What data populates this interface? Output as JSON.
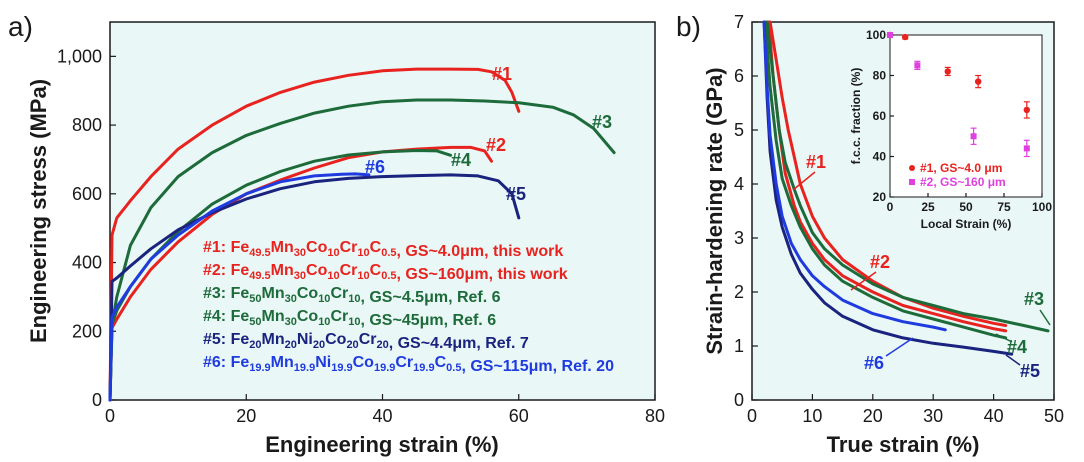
{
  "chart_data": [
    {
      "type": "line",
      "panel_label": "a)",
      "xlabel": "Engineering strain (%)",
      "ylabel": "Engineering stress (MPa)",
      "xlim": [
        0,
        80
      ],
      "ylim": [
        0,
        1100
      ],
      "xticks": [
        "0",
        "20",
        "40",
        "60",
        "80"
      ],
      "yticks": [
        "0",
        "200",
        "400",
        "600",
        "800",
        "1,000"
      ],
      "xtick_values": [
        0,
        20,
        40,
        60,
        80
      ],
      "ytick_values": [
        0,
        200,
        400,
        600,
        800,
        1000
      ],
      "grid": false,
      "background": "#e9f7f6",
      "series": [
        {
          "tag": "#1",
          "color": "#e8231f",
          "x": [
            0,
            0.3,
            1,
            3,
            6,
            10,
            15,
            20,
            25,
            30,
            35,
            40,
            45,
            50,
            54,
            56,
            58,
            59,
            60
          ],
          "y": [
            0,
            480,
            530,
            580,
            650,
            730,
            800,
            855,
            895,
            925,
            945,
            958,
            963,
            963,
            962,
            955,
            930,
            895,
            840
          ]
        },
        {
          "tag": "#2",
          "color": "#e8231f",
          "x": [
            0,
            0.3,
            1,
            3,
            6,
            10,
            15,
            20,
            25,
            30,
            35,
            40,
            45,
            50,
            53,
            55,
            56
          ],
          "y": [
            0,
            210,
            235,
            300,
            380,
            460,
            540,
            600,
            640,
            675,
            705,
            722,
            730,
            735,
            735,
            725,
            695
          ]
        },
        {
          "tag": "#3",
          "color": "#1d6b3a",
          "x": [
            0,
            0.3,
            1,
            3,
            6,
            10,
            15,
            20,
            25,
            30,
            35,
            40,
            45,
            50,
            55,
            60,
            65,
            68,
            71,
            74
          ],
          "y": [
            0,
            220,
            300,
            450,
            560,
            650,
            720,
            770,
            805,
            835,
            855,
            868,
            873,
            873,
            870,
            865,
            852,
            830,
            790,
            720
          ]
        },
        {
          "tag": "#4",
          "color": "#1d6b3a",
          "x": [
            0,
            0.3,
            1,
            3,
            6,
            10,
            15,
            20,
            25,
            30,
            35,
            40,
            45,
            48,
            50
          ],
          "y": [
            0,
            220,
            260,
            330,
            410,
            490,
            570,
            625,
            665,
            695,
            713,
            722,
            726,
            725,
            712
          ]
        },
        {
          "tag": "#5",
          "color": "#1a237e",
          "x": [
            0,
            0.3,
            1,
            3,
            6,
            10,
            15,
            20,
            25,
            30,
            35,
            40,
            45,
            50,
            54,
            57,
            59,
            60
          ],
          "y": [
            0,
            345,
            355,
            390,
            440,
            495,
            545,
            585,
            615,
            635,
            645,
            650,
            653,
            655,
            652,
            638,
            600,
            530
          ]
        },
        {
          "tag": "#6",
          "color": "#1f3be0",
          "x": [
            0,
            0.3,
            1,
            3,
            6,
            10,
            15,
            20,
            25,
            30,
            34,
            36,
            38
          ],
          "y": [
            0,
            240,
            270,
            330,
            410,
            480,
            550,
            600,
            635,
            652,
            657,
            658,
            655
          ]
        }
      ],
      "legend": [
        {
          "color": "#e8231f",
          "lead": "#1: Fe",
          "parts": [
            [
              "49.5",
              "Mn"
            ],
            [
              "30",
              "Co"
            ],
            [
              "10",
              "Cr"
            ],
            [
              "10",
              "C"
            ],
            [
              "0.5",
              ""
            ]
          ],
          "tail": ", GS~4.0μm, this work"
        },
        {
          "color": "#e8231f",
          "lead": "#2: Fe",
          "parts": [
            [
              "49.5",
              "Mn"
            ],
            [
              "30",
              "Co"
            ],
            [
              "10",
              "Cr"
            ],
            [
              "10",
              "C"
            ],
            [
              "0.5",
              ""
            ]
          ],
          "tail": ", GS~160μm, this work"
        },
        {
          "color": "#1d6b3a",
          "lead": "#3: Fe",
          "parts": [
            [
              "50",
              "Mn"
            ],
            [
              "30",
              "Co"
            ],
            [
              "10",
              "Cr"
            ],
            [
              "10",
              ""
            ]
          ],
          "tail": ", GS~4.5μm, Ref. 6"
        },
        {
          "color": "#1d6b3a",
          "lead": "#4: Fe",
          "parts": [
            [
              "50",
              "Mn"
            ],
            [
              "30",
              "Co"
            ],
            [
              "10",
              "Cr"
            ],
            [
              "10",
              ""
            ]
          ],
          "tail": ", GS~45μm, Ref. 6"
        },
        {
          "color": "#1a237e",
          "lead": "#5: Fe",
          "parts": [
            [
              "20",
              "Mn"
            ],
            [
              "20",
              "Ni"
            ],
            [
              "20",
              "Co"
            ],
            [
              "20",
              "Cr"
            ],
            [
              "20",
              ""
            ]
          ],
          "tail": ", GS~4.4μm, Ref. 7"
        },
        {
          "color": "#1f3be0",
          "lead": "#6: Fe",
          "parts": [
            [
              "19.9",
              "Mn"
            ],
            [
              "19.9",
              "Ni"
            ],
            [
              "19.9",
              "Co"
            ],
            [
              "19.9",
              "Cr"
            ],
            [
              "19.9",
              "C"
            ],
            [
              "0.5",
              ""
            ]
          ],
          "tail": ", GS~115μm, Ref. 20"
        }
      ]
    },
    {
      "type": "line",
      "panel_label": "b)",
      "xlabel": "True strain (%)",
      "ylabel": "Strain-hardening rate (GPa)",
      "xlim": [
        0,
        50
      ],
      "ylim": [
        0,
        7
      ],
      "xticks": [
        "0",
        "10",
        "20",
        "30",
        "40",
        "50"
      ],
      "yticks": [
        "0",
        "1",
        "2",
        "3",
        "4",
        "5",
        "6",
        "7"
      ],
      "xtick_values": [
        0,
        10,
        20,
        30,
        40,
        50
      ],
      "ytick_values": [
        0,
        1,
        2,
        3,
        4,
        5,
        6,
        7
      ],
      "grid": false,
      "background": "#e9f7f6",
      "series": [
        {
          "tag": "#1",
          "color": "#e8231f",
          "x": [
            3,
            4,
            5,
            6,
            7,
            8,
            10,
            12,
            15,
            20,
            25,
            30,
            35,
            40,
            42
          ],
          "y": [
            7,
            6.3,
            5.6,
            5.0,
            4.5,
            4.0,
            3.4,
            3.0,
            2.6,
            2.2,
            1.9,
            1.7,
            1.55,
            1.42,
            1.38
          ]
        },
        {
          "tag": "#2",
          "color": "#e8231f",
          "x": [
            2.8,
            3.5,
            4.5,
            5.5,
            7,
            8,
            10,
            12,
            15,
            20,
            25,
            30,
            35,
            40,
            42
          ],
          "y": [
            7,
            6.0,
            5.0,
            4.2,
            3.6,
            3.3,
            2.9,
            2.6,
            2.3,
            2.0,
            1.75,
            1.6,
            1.45,
            1.32,
            1.28
          ]
        },
        {
          "tag": "#3",
          "color": "#1d6b3a",
          "x": [
            2.5,
            3.5,
            4.5,
            5.5,
            7,
            8,
            10,
            12,
            15,
            20,
            25,
            30,
            35,
            40,
            45,
            49
          ],
          "y": [
            7,
            6.0,
            5.0,
            4.4,
            3.9,
            3.6,
            3.1,
            2.8,
            2.5,
            2.15,
            1.9,
            1.75,
            1.6,
            1.5,
            1.38,
            1.28
          ]
        },
        {
          "tag": "#4",
          "color": "#1d6b3a",
          "x": [
            2.2,
            3,
            4,
            5,
            6.5,
            8,
            10,
            12,
            15,
            20,
            25,
            30,
            35,
            40,
            42
          ],
          "y": [
            7,
            5.8,
            4.8,
            4.1,
            3.6,
            3.2,
            2.8,
            2.5,
            2.2,
            1.9,
            1.65,
            1.5,
            1.35,
            1.2,
            1.15
          ]
        },
        {
          "tag": "#5",
          "color": "#1a237e",
          "x": [
            2,
            2.5,
            3,
            4,
            5,
            6.5,
            8,
            10,
            12,
            15,
            20,
            25,
            30,
            35,
            40,
            43
          ],
          "y": [
            7,
            5.6,
            4.6,
            3.7,
            3.2,
            2.7,
            2.35,
            2.05,
            1.8,
            1.55,
            1.3,
            1.15,
            1.05,
            0.98,
            0.9,
            0.85
          ]
        },
        {
          "tag": "#6",
          "color": "#1f3be0",
          "x": [
            2,
            2.5,
            3,
            4,
            5,
            6.5,
            8,
            10,
            12,
            15,
            20,
            25,
            30,
            32
          ],
          "y": [
            7,
            5.8,
            4.9,
            4.0,
            3.4,
            2.9,
            2.6,
            2.3,
            2.1,
            1.85,
            1.6,
            1.45,
            1.35,
            1.3
          ]
        }
      ],
      "inset": {
        "type": "scatter",
        "xlabel": "Local Strain (%)",
        "ylabel": "f.c.c. fraction (%)",
        "xlim": [
          0,
          100
        ],
        "ylim": [
          20,
          100
        ],
        "xticks": [
          "0",
          "25",
          "50",
          "75",
          "100"
        ],
        "yticks": [
          "20",
          "40",
          "60",
          "80",
          "100"
        ],
        "xtick_values": [
          0,
          25,
          50,
          75,
          100
        ],
        "ytick_values": [
          20,
          40,
          60,
          80,
          100
        ],
        "series": [
          {
            "name": "#1, GS~4.0 μm",
            "color": "#e8231f",
            "x": [
              0,
              10,
              38,
              58,
              90
            ],
            "y": [
              100,
              99,
              82,
              77,
              63
            ],
            "err": [
              1,
              1,
              2,
              3,
              4
            ]
          },
          {
            "name": "#2, GS~160 μm",
            "color": "#e040e0",
            "x": [
              0,
              18,
              55,
              90
            ],
            "y": [
              100,
              85,
              50,
              44
            ],
            "err": [
              1,
              2,
              4,
              4
            ]
          }
        ]
      }
    }
  ]
}
